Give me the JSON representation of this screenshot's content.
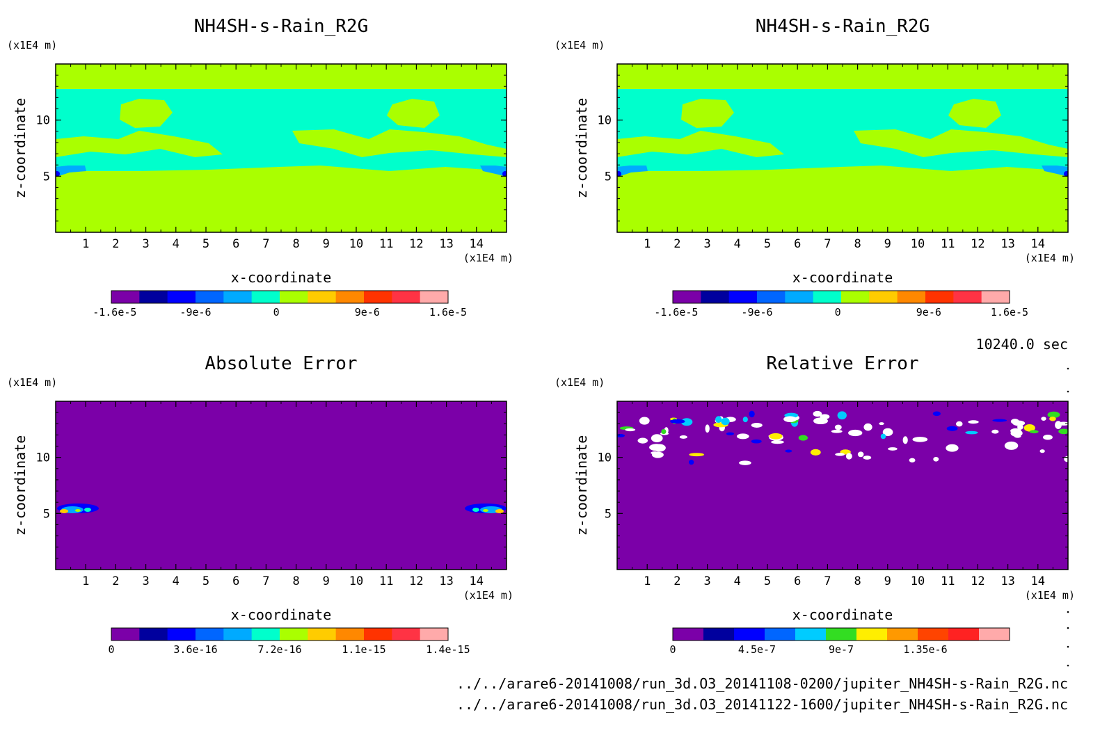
{
  "time_label": "10240.0 sec",
  "files": [
    "../../arare6-20141008/run_3d.O3_20141108-0200/jupiter_NH4SH-s-Rain_R2G.nc",
    "../../arare6-20141008/run_3d.O3_20141122-1600/jupiter_NH4SH-s-Rain_R2G.nc"
  ],
  "chart_data": [
    {
      "type": "heatmap",
      "title": "NH4SH-s-Rain_R2G",
      "xlabel": "x-coordinate",
      "ylabel": "z-coordinate",
      "x_unit": "(x1E4 m)",
      "y_unit": "(x1E4 m)",
      "xlim": [
        0,
        15
      ],
      "ylim": [
        0,
        15
      ],
      "x_ticks": [
        "1",
        "2",
        "3",
        "4",
        "5",
        "6",
        "7",
        "8",
        "9",
        "10",
        "11",
        "12",
        "13",
        "14"
      ],
      "y_ticks": [
        "5",
        "10"
      ],
      "colorbar": {
        "tick_labels": [
          "-1.6e-5",
          "-9e-6",
          "0",
          "9e-6",
          "1.6e-5"
        ],
        "colors": [
          "#7b00a8",
          "#00009e",
          "#0000ff",
          "#0066ff",
          "#00aaff",
          "#00ffcc",
          "#aaff00",
          "#ffcc00",
          "#ff8800",
          "#ff3300",
          "#ff3344",
          "#ffaaaa"
        ]
      },
      "regions": [
        {
          "value": 0,
          "color": "#00ffcc",
          "z_range": [
            5.3,
            14.2
          ]
        },
        {
          "value": 3e-06,
          "color": "#aaff00",
          "z_range": [
            0,
            5.3
          ]
        },
        {
          "value": 3e-06,
          "color": "#aaff00",
          "z_range": [
            13.5,
            15
          ]
        }
      ]
    },
    {
      "type": "heatmap",
      "title": "NH4SH-s-Rain_R2G",
      "xlabel": "x-coordinate",
      "ylabel": "z-coordinate",
      "x_unit": "(x1E4 m)",
      "y_unit": "(x1E4 m)",
      "xlim": [
        0,
        15
      ],
      "ylim": [
        0,
        15
      ],
      "x_ticks": [
        "1",
        "2",
        "3",
        "4",
        "5",
        "6",
        "7",
        "8",
        "9",
        "10",
        "11",
        "12",
        "13",
        "14"
      ],
      "y_ticks": [
        "5",
        "10"
      ],
      "colorbar": {
        "tick_labels": [
          "-1.6e-5",
          "-9e-6",
          "0",
          "9e-6",
          "1.6e-5"
        ],
        "colors": [
          "#7b00a8",
          "#00009e",
          "#0000ff",
          "#0066ff",
          "#00aaff",
          "#00ffcc",
          "#aaff00",
          "#ffcc00",
          "#ff8800",
          "#ff3300",
          "#ff3344",
          "#ffaaaa"
        ]
      },
      "regions": [
        {
          "value": 0,
          "color": "#00ffcc",
          "z_range": [
            5.3,
            14.2
          ]
        },
        {
          "value": 3e-06,
          "color": "#aaff00",
          "z_range": [
            0,
            5.3
          ]
        },
        {
          "value": 3e-06,
          "color": "#aaff00",
          "z_range": [
            13.5,
            15
          ]
        }
      ]
    },
    {
      "type": "heatmap",
      "title": "Absolute Error",
      "xlabel": "x-coordinate",
      "ylabel": "z-coordinate",
      "x_unit": "(x1E4 m)",
      "y_unit": "(x1E4 m)",
      "xlim": [
        0,
        15
      ],
      "ylim": [
        0,
        15
      ],
      "x_ticks": [
        "1",
        "2",
        "3",
        "4",
        "5",
        "6",
        "7",
        "8",
        "9",
        "10",
        "11",
        "12",
        "13",
        "14"
      ],
      "y_ticks": [
        "5",
        "10"
      ],
      "colorbar": {
        "tick_labels": [
          "0",
          "3.6e-16",
          "7.2e-16",
          "1.1e-15",
          "1.4e-15"
        ],
        "colors": [
          "#7b00a8",
          "#00009e",
          "#0000ff",
          "#0066ff",
          "#00aaff",
          "#00ffcc",
          "#aaff00",
          "#ffcc00",
          "#ff8800",
          "#ff3300",
          "#ff3344",
          "#ffaaaa"
        ]
      },
      "regions": [
        {
          "value": 0,
          "color": "#7b00a8",
          "z_range": [
            0,
            15
          ]
        }
      ],
      "hotspots": [
        {
          "x": 0.6,
          "z": 5.3
        },
        {
          "x": 14.4,
          "z": 5.3
        }
      ]
    },
    {
      "type": "heatmap",
      "title": "Relative Error",
      "xlabel": "x-coordinate",
      "ylabel": "z-coordinate",
      "x_unit": "(x1E4 m)",
      "y_unit": "(x1E4 m)",
      "xlim": [
        0,
        15
      ],
      "ylim": [
        0,
        15
      ],
      "x_ticks": [
        "1",
        "2",
        "3",
        "4",
        "5",
        "6",
        "7",
        "8",
        "9",
        "10",
        "11",
        "12",
        "13",
        "14"
      ],
      "y_ticks": [
        "5",
        "10"
      ],
      "colorbar": {
        "tick_labels": [
          "0",
          "4.5e-7",
          "9e-7",
          "1.35e-6"
        ],
        "colors": [
          "#7b00a8",
          "#00009e",
          "#0000ff",
          "#0066ff",
          "#00ccff",
          "#33dd22",
          "#ffee00",
          "#ff9900",
          "#ff4400",
          "#ff2222",
          "#ffaaaa"
        ]
      },
      "regions": [
        {
          "value": 0,
          "color": "#7b00a8",
          "z_range": [
            0,
            15
          ]
        }
      ],
      "scatter_band_z": [
        9.5,
        14
      ]
    }
  ]
}
